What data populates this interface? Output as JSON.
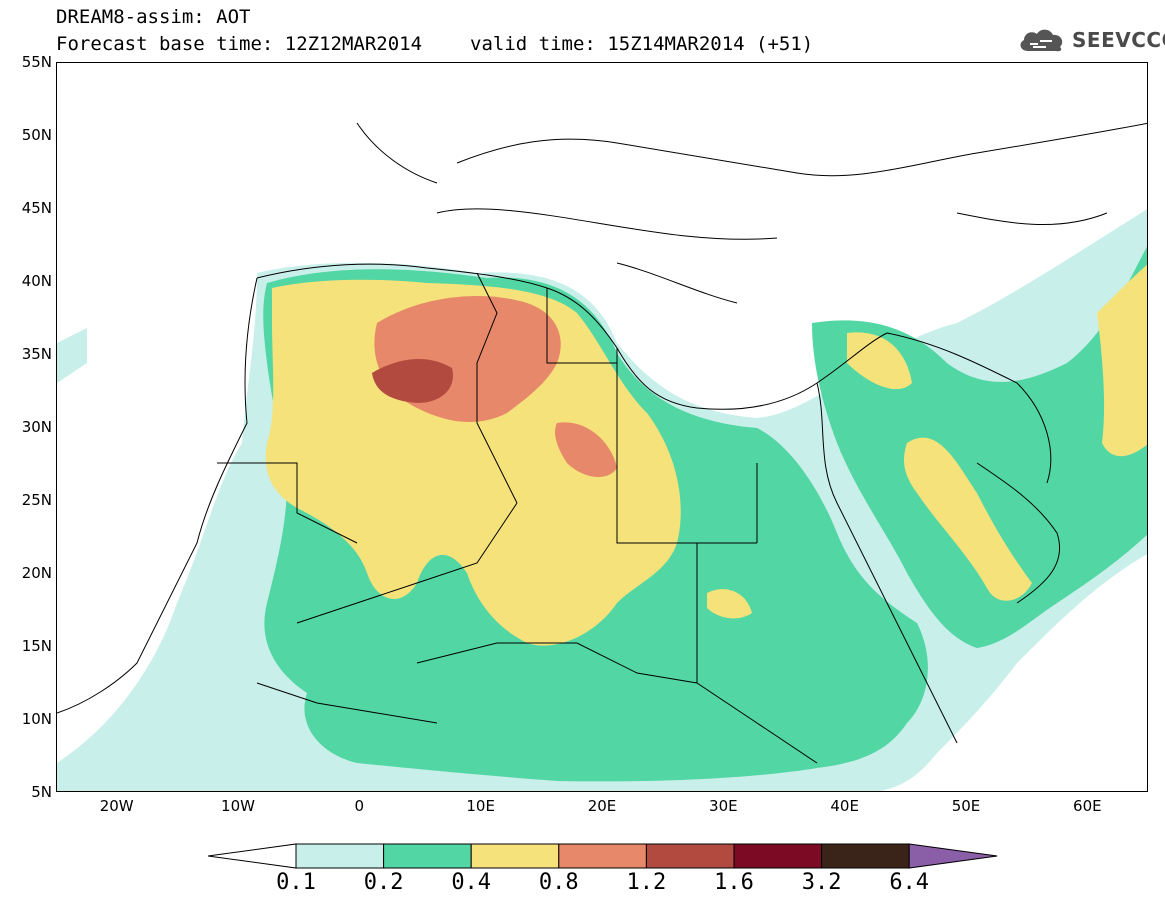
{
  "title": {
    "line1": "DREAM8-assim: AOT",
    "base_time": "Forecast base time: 12Z12MAR2014",
    "valid_time": "valid time: 15Z14MAR2014 (+51)"
  },
  "logo": {
    "text": "SEEVCCC",
    "icon": "cloud-icon"
  },
  "map": {
    "lon_range": [
      -25,
      65
    ],
    "lat_range": [
      5,
      55
    ],
    "lat_ticks": [
      "55N",
      "50N",
      "45N",
      "40N",
      "35N",
      "30N",
      "25N",
      "20N",
      "15N",
      "10N",
      "5N"
    ],
    "lon_ticks": [
      "20W",
      "10W",
      "0",
      "10E",
      "20E",
      "30E",
      "40E",
      "50E",
      "60E"
    ]
  },
  "colorbar": {
    "labels": [
      "0.1",
      "0.2",
      "0.4",
      "0.8",
      "1.2",
      "1.6",
      "3.2",
      "6.4"
    ],
    "colors": [
      "#c8efea",
      "#52d6a4",
      "#f5e27b",
      "#e8886a",
      "#b24a3f",
      "#7d0a24",
      "#3a2318",
      "#8a5fa8"
    ],
    "under_color": "#ffffff"
  }
}
